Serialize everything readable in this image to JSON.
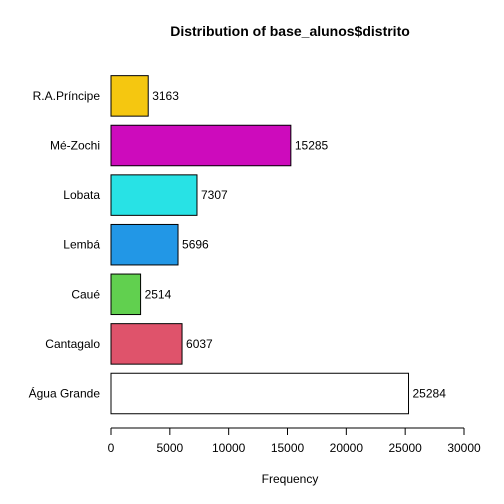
{
  "chart_data": {
    "type": "bar",
    "orientation": "horizontal",
    "title": "Distribution of base_alunos$distrito",
    "xlabel": "Frequency",
    "ylabel": "",
    "xlim": [
      0,
      30000
    ],
    "xticks": [
      0,
      5000,
      10000,
      15000,
      20000,
      25000,
      30000
    ],
    "grid": false,
    "legend": "none",
    "categories": [
      "Água Grande",
      "Cantagalo",
      "Caué",
      "Lembá",
      "Lobata",
      "Mé-Zochi",
      "R.A.Príncipe"
    ],
    "values": [
      25284,
      6037,
      2514,
      5696,
      7307,
      15285,
      3163
    ],
    "colors": [
      "#FFFFFF",
      "#DF536B",
      "#61D04F",
      "#2297E6",
      "#28E2E5",
      "#CD0BBC",
      "#F5C710"
    ]
  }
}
